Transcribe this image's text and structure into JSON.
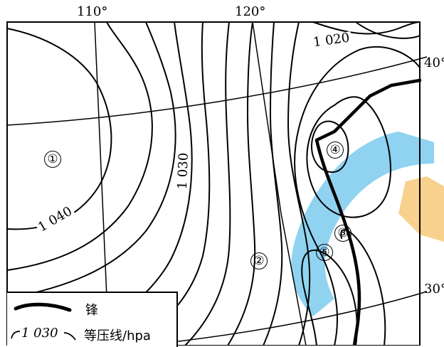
{
  "longitudes": [
    "110°",
    "120°"
  ],
  "latitudes": [
    "40°",
    "30°"
  ],
  "isobar_labels": [
    "1 020",
    "1 030",
    "1 040"
  ],
  "regions": [
    "①",
    "②",
    "③",
    "④",
    "⑤"
  ],
  "legend": {
    "front_label": "锋",
    "isobar_sample": "1 030",
    "isobar_label": "等压线/hpa"
  },
  "colors": {
    "line": "#000000",
    "watermark_blue": "#7ccbef",
    "watermark_orange": "#f6c97a"
  }
}
